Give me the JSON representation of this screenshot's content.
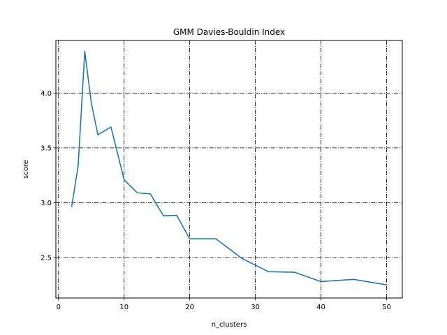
{
  "chart_data": {
    "type": "line",
    "title": "GMM Davies-Bouldin Index",
    "xlabel": "n_clusters",
    "ylabel": "score",
    "xlim": [
      -0.4,
      52.4
    ],
    "ylim": [
      2.13,
      4.48
    ],
    "xticks": [
      0,
      10,
      20,
      30,
      40,
      50
    ],
    "yticks": [
      2.5,
      3.0,
      3.5,
      4.0
    ],
    "ytick_labels": [
      "2.5",
      "3.0",
      "3.5",
      "4.0"
    ],
    "grid": true,
    "series_color": "#1f77b4",
    "series": [
      {
        "x": [
          2,
          3,
          4,
          5,
          6,
          8,
          10,
          12,
          14,
          16,
          18,
          20,
          24,
          28,
          32,
          36,
          40,
          45,
          50
        ],
        "y": [
          2.96,
          3.34,
          4.38,
          3.91,
          3.62,
          3.69,
          3.21,
          3.09,
          3.08,
          2.88,
          2.885,
          2.67,
          2.67,
          2.49,
          2.37,
          2.365,
          2.28,
          2.3,
          2.25
        ]
      }
    ]
  }
}
